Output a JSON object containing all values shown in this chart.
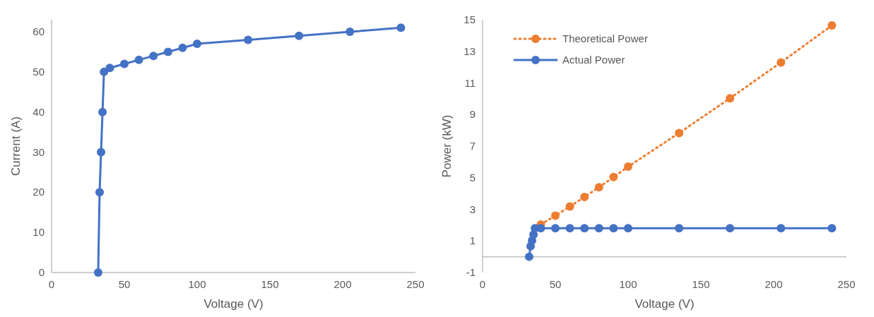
{
  "chart_data": [
    {
      "type": "line",
      "xlabel": "Voltage (V)",
      "ylabel": "Current (A)",
      "xlim": [
        0,
        250
      ],
      "xticks": [
        0,
        50,
        100,
        150,
        200,
        250
      ],
      "ylim": [
        0,
        63
      ],
      "yticks": [
        0,
        10,
        20,
        30,
        40,
        50,
        60
      ],
      "grid": false,
      "marker": "circle",
      "line_style": "solid",
      "series": [
        {
          "color": "#4472c4",
          "x": [
            32,
            33,
            34,
            35,
            36,
            40,
            50,
            60,
            70,
            80,
            90,
            100,
            135,
            170,
            205,
            240
          ],
          "values": [
            0,
            20,
            30,
            40,
            50,
            51,
            52,
            53,
            54,
            55,
            56,
            57,
            58,
            59,
            60,
            61
          ]
        }
      ]
    },
    {
      "type": "line",
      "xlabel": "Voltage (V)",
      "ylabel": "Power (kW)",
      "xlim": [
        0,
        250
      ],
      "xticks": [
        0,
        50,
        100,
        150,
        200,
        250
      ],
      "ylim": [
        -1,
        15
      ],
      "yticks": [
        -1,
        1,
        3,
        5,
        7,
        9,
        11,
        13,
        15
      ],
      "grid": false,
      "marker": "circle",
      "legend": "top left",
      "series": [
        {
          "name": "Theoretical Power",
          "color": "#ed7d31",
          "line_style": "dotted",
          "x": [
            40,
            50,
            60,
            70,
            80,
            90,
            100,
            135,
            170,
            205,
            240
          ],
          "values": [
            2.04,
            2.6,
            3.18,
            3.78,
            4.4,
            5.04,
            5.7,
            7.83,
            10.03,
            12.3,
            14.64
          ]
        },
        {
          "name": "Actual Power",
          "color": "#4472c4",
          "line_style": "solid",
          "x": [
            32,
            33,
            34,
            35,
            36,
            40,
            50,
            60,
            70,
            80,
            90,
            100,
            135,
            170,
            205,
            240
          ],
          "values": [
            0,
            0.66,
            1.02,
            1.4,
            1.8,
            1.8,
            1.8,
            1.8,
            1.8,
            1.8,
            1.8,
            1.8,
            1.8,
            1.8,
            1.8,
            1.8
          ]
        }
      ]
    }
  ]
}
